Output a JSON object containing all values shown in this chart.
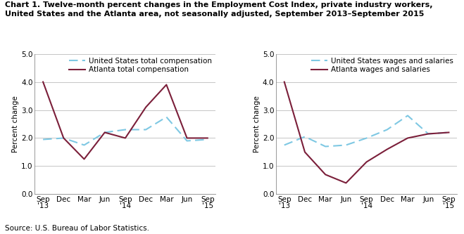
{
  "title_line1": "Chart 1. Twelve-month percent changes in the Employment Cost Index, private industry workers,",
  "title_line2": "United States and the Atlanta area, not seasonally adjusted, September 2013–September 2015",
  "ylabel": "Percent change",
  "source": "Source: U.S. Bureau of Labor Statistics.",
  "x_labels": [
    "Sep\n'13",
    "Dec",
    "Mar",
    "Jun",
    "Sep\n'14",
    "Dec",
    "Mar",
    "Jun",
    "Sep\n'15"
  ],
  "x_ticks": [
    0,
    1,
    2,
    3,
    4,
    5,
    6,
    7,
    8
  ],
  "ylim": [
    0.0,
    5.0
  ],
  "yticks": [
    0.0,
    1.0,
    2.0,
    3.0,
    4.0,
    5.0
  ],
  "left": {
    "us_label": "United States total compensation",
    "atlanta_label": "Atlanta total compensation",
    "us_values": [
      1.95,
      2.0,
      1.75,
      2.2,
      2.3,
      2.3,
      2.75,
      1.9,
      1.95
    ],
    "atlanta_values": [
      4.0,
      2.0,
      1.25,
      2.2,
      2.0,
      3.1,
      3.9,
      2.0,
      2.0
    ]
  },
  "right": {
    "us_label": "United States wages and salaries",
    "atlanta_label": "Atlanta wages and salaries",
    "us_values": [
      1.75,
      2.05,
      1.7,
      1.75,
      2.0,
      2.3,
      2.8,
      2.15,
      2.2
    ],
    "atlanta_values": [
      4.0,
      1.5,
      0.7,
      0.4,
      1.15,
      1.6,
      2.0,
      2.15,
      2.2
    ]
  },
  "us_color": "#7EC8E3",
  "atlanta_color": "#7B1F3A",
  "line_width": 1.5,
  "grid_color": "#bbbbbb",
  "bg_color": "#ffffff",
  "title_fontsize": 8.0,
  "label_fontsize": 7.5,
  "legend_fontsize": 7.5,
  "source_fontsize": 7.5
}
